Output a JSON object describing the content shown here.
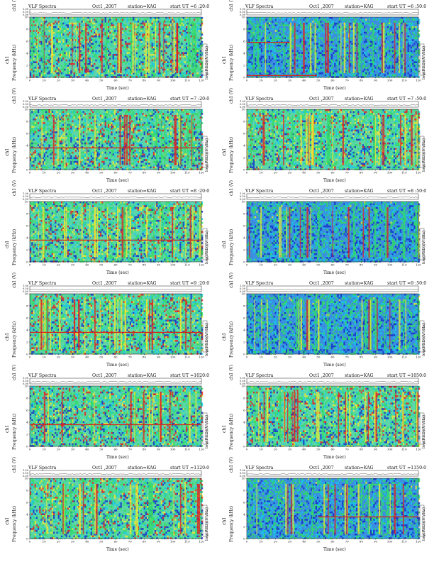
{
  "figure_title": "VLF Spectra",
  "chart_data": [
    {
      "type": "heatmap",
      "title": "VLF Spectra",
      "date": "Oct1 ,2007",
      "station": "station=KAG",
      "start": "start  UT =6 :20:0",
      "xlabel": "Time  (sec)",
      "ylabel_top": "ch1 (V)",
      "ylabel": "Frequency  (kHz)",
      "side_label": "ch1",
      "colorbar_label": "log(PSD)(V²/Hz)",
      "xlim": [
        0,
        120
      ],
      "ylim": [
        0,
        10
      ],
      "ch1_ticks": [
        "0.00",
        "0.50",
        "1.00"
      ],
      "x_ticks": [
        0,
        10,
        20,
        30,
        40,
        50,
        60,
        70,
        80,
        90,
        100,
        110,
        120
      ],
      "y_ticks": [
        0,
        2,
        4,
        6,
        8,
        10
      ],
      "hum_lines": []
    },
    {
      "type": "heatmap",
      "title": "VLF Spectra",
      "date": "Oct1 ,2007",
      "station": "station=KAG",
      "start": "start  UT =6 :50:0",
      "xlabel": "Time  (sec)",
      "ylabel_top": "ch1 (V)",
      "ylabel": "Frequency  (kHz)",
      "side_label": "ch1",
      "colorbar_label": "log(PSD)(V²/Hz)",
      "xlim": [
        0,
        120
      ],
      "ylim": [
        0,
        10
      ],
      "ch1_ticks": [
        "0.00",
        "0.50",
        "1.00"
      ],
      "x_ticks": [
        0,
        10,
        20,
        30,
        40,
        50,
        60,
        70,
        80,
        90,
        100,
        110,
        120
      ],
      "y_ticks": [
        0,
        2,
        4,
        6,
        8,
        10
      ],
      "hum_lines": [
        {
          "y": 5.8,
          "x0": 0,
          "x1": 30
        },
        {
          "y": 0.3,
          "x0": 0,
          "x1": 49
        }
      ]
    },
    {
      "type": "heatmap",
      "title": "VLF Spectra",
      "date": "Oct1 ,2007",
      "station": "station=KAG",
      "start": "start  UT =7 :20:0",
      "xlabel": "Time  (sec)",
      "ylabel_top": "ch1 (V)",
      "ylabel": "Frequency  (kHz)",
      "side_label": "ch1",
      "colorbar_label": "log(PSD)(V²/Hz)",
      "xlim": [
        0,
        120
      ],
      "ylim": [
        0,
        10
      ],
      "ch1_ticks": [
        "0.00",
        "0.50",
        "1.00"
      ],
      "x_ticks": [
        0,
        10,
        20,
        30,
        40,
        50,
        60,
        70,
        80,
        90,
        100,
        110,
        120
      ],
      "y_ticks": [
        0,
        2,
        4,
        6,
        8,
        10
      ],
      "hum_lines": [
        {
          "y": 3.6,
          "x0": 0,
          "x1": 120
        }
      ]
    },
    {
      "type": "heatmap",
      "title": "VLF Spectra",
      "date": "Oct1 ,2007",
      "station": "station=KAG",
      "start": "start  UT =7 :50:0",
      "xlabel": "Time  (sec)",
      "ylabel_top": "ch1 (V)",
      "ylabel": "Frequency  (kHz)",
      "side_label": "ch1",
      "colorbar_label": "log(PSD)(V²/Hz)",
      "xlim": [
        0,
        120
      ],
      "ylim": [
        0,
        10
      ],
      "ch1_ticks": [
        "0.00",
        "0.50",
        "1.00"
      ],
      "x_ticks": [
        0,
        10,
        20,
        30,
        40,
        50,
        60,
        70,
        80,
        90,
        100,
        110,
        120
      ],
      "y_ticks": [
        0,
        2,
        4,
        6,
        8,
        10
      ],
      "hum_lines": []
    },
    {
      "type": "heatmap",
      "title": "VLF Spectra",
      "date": "Oct1 ,2007",
      "station": "station=KAG",
      "start": "start  UT =8 :20:0",
      "xlabel": "Time  (sec)",
      "ylabel_top": "ch1 (V)",
      "ylabel": "Frequency  (kHz)",
      "side_label": "ch1",
      "colorbar_label": "log(PSD)(V²/Hz)",
      "xlim": [
        0,
        120
      ],
      "ylim": [
        0,
        10
      ],
      "ch1_ticks": [
        "0.00",
        "0.50",
        "1.00"
      ],
      "x_ticks": [
        0,
        10,
        20,
        30,
        40,
        50,
        60,
        70,
        80,
        90,
        100,
        110,
        120
      ],
      "y_ticks": [
        0,
        2,
        4,
        6,
        8,
        10
      ],
      "hum_lines": [
        {
          "y": 3.6,
          "x0": 0,
          "x1": 120
        }
      ]
    },
    {
      "type": "heatmap",
      "title": "VLF Spectra",
      "date": "Oct1 ,2007",
      "station": "station=KAG",
      "start": "start  UT =8 :50:0",
      "xlabel": "Time  (sec)",
      "ylabel_top": "ch1 (V)",
      "ylabel": "Frequency  (kHz)",
      "side_label": "ch1",
      "colorbar_label": "log(PSD)(V²/Hz)",
      "xlim": [
        0,
        120
      ],
      "ylim": [
        0,
        10
      ],
      "ch1_ticks": [
        "0.00",
        "0.50",
        "1.00"
      ],
      "x_ticks": [
        0,
        10,
        20,
        30,
        40,
        50,
        60,
        70,
        80,
        90,
        100,
        110,
        120
      ],
      "y_ticks": [
        0,
        2,
        4,
        6,
        8,
        10
      ],
      "hum_lines": []
    },
    {
      "type": "heatmap",
      "title": "VLF Spectra",
      "date": "Oct1 ,2007",
      "station": "station=KAG",
      "start": "start  UT =9 :20:0",
      "xlabel": "Time  (sec)",
      "ylabel_top": "ch1 (V)",
      "ylabel": "Frequency  (kHz)",
      "side_label": "ch1",
      "colorbar_label": "log(PSD)(V²/Hz)",
      "xlim": [
        0,
        120
      ],
      "ylim": [
        0,
        10
      ],
      "ch1_ticks": [
        "0.00",
        "0.50",
        "1.00"
      ],
      "x_ticks": [
        0,
        10,
        20,
        30,
        40,
        50,
        60,
        70,
        80,
        90,
        100,
        110,
        120
      ],
      "y_ticks": [
        0,
        2,
        4,
        6,
        8,
        10
      ],
      "hum_lines": [
        {
          "y": 3.6,
          "x0": 0,
          "x1": 120
        }
      ]
    },
    {
      "type": "heatmap",
      "title": "VLF Spectra",
      "date": "Oct1 ,2007",
      "station": "station=KAG",
      "start": "start  UT =9 :50:0",
      "xlabel": "Time  (sec)",
      "ylabel_top": "ch1 (V)",
      "ylabel": "Frequency  (kHz)",
      "side_label": "ch1",
      "colorbar_label": "log(PSD)(V²/Hz)",
      "xlim": [
        0,
        120
      ],
      "ylim": [
        0,
        10
      ],
      "ch1_ticks": [
        "0.00",
        "0.50",
        "1.00"
      ],
      "x_ticks": [
        0,
        10,
        20,
        30,
        40,
        50,
        60,
        70,
        80,
        90,
        100,
        110,
        120
      ],
      "y_ticks": [
        0,
        2,
        4,
        6,
        8,
        10
      ],
      "hum_lines": []
    },
    {
      "type": "heatmap",
      "title": "VLF Spectra",
      "date": "Oct1 ,2007",
      "station": "station=KAG",
      "start": "start  UT =1020:0",
      "xlabel": "Time  (sec)",
      "ylabel_top": "ch1 (V)",
      "ylabel": "Frequency  (kHz)",
      "side_label": "ch1",
      "colorbar_label": "log(PSD)(V²/Hz)",
      "xlim": [
        0,
        120
      ],
      "ylim": [
        0,
        10
      ],
      "ch1_ticks": [
        "0.00",
        "0.50",
        "1.00"
      ],
      "x_ticks": [
        0,
        10,
        20,
        30,
        40,
        50,
        60,
        70,
        80,
        90,
        100,
        110,
        120
      ],
      "y_ticks": [
        0,
        2,
        4,
        6,
        8,
        10
      ],
      "hum_lines": [
        {
          "y": 3.6,
          "x0": 0,
          "x1": 120
        }
      ]
    },
    {
      "type": "heatmap",
      "title": "VLF Spectra",
      "date": "Oct1 ,2007",
      "station": "station=KAG",
      "start": "start  UT =1050:0",
      "xlabel": "Time  (sec)",
      "ylabel_top": "ch1 (V)",
      "ylabel": "Frequency  (kHz)",
      "side_label": "ch1",
      "colorbar_label": "log(PSD)(V²/Hz)",
      "xlim": [
        0,
        120
      ],
      "ylim": [
        0,
        10
      ],
      "ch1_ticks": [
        "0.00",
        "0.50",
        "1.00"
      ],
      "x_ticks": [
        0,
        10,
        20,
        30,
        40,
        50,
        60,
        70,
        80,
        90,
        100,
        110,
        120
      ],
      "y_ticks": [
        0,
        2,
        4,
        6,
        8,
        10
      ],
      "hum_lines": []
    },
    {
      "type": "heatmap",
      "title": "VLF Spectra",
      "date": "Oct1 ,2007",
      "station": "station=KAG",
      "start": "start  UT =1120:0",
      "xlabel": "Time  (sec)",
      "ylabel_top": "ch1 (V)",
      "ylabel": "Frequency  (kHz)",
      "side_label": "ch1",
      "colorbar_label": "log(PSD)(V²/Hz)",
      "xlim": [
        0,
        120
      ],
      "ylim": [
        0,
        10
      ],
      "ch1_ticks": [
        "0.00",
        "0.50",
        "1.00"
      ],
      "x_ticks": [
        0,
        10,
        20,
        30,
        40,
        50,
        60,
        70,
        80,
        90,
        100,
        110,
        120
      ],
      "y_ticks": [
        0,
        2,
        4,
        6,
        8,
        10
      ],
      "hum_lines": []
    },
    {
      "type": "heatmap",
      "title": "VLF Spectra",
      "date": "Oct1 ,2007",
      "station": "station=KAG",
      "start": "start  UT =1150:0",
      "xlabel": "Time  (sec)",
      "ylabel_top": "ch1 (V)",
      "ylabel": "Frequency  (kHz)",
      "side_label": "ch1",
      "colorbar_label": "log(PSD)(V²/Hz)",
      "xlim": [
        0,
        120
      ],
      "ylim": [
        0,
        10
      ],
      "ch1_ticks": [
        "0.00",
        "0.50",
        "1.00"
      ],
      "x_ticks": [
        0,
        10,
        20,
        30,
        40,
        50,
        60,
        70,
        80,
        90,
        100,
        110,
        120
      ],
      "y_ticks": [
        0,
        2,
        4,
        6,
        8,
        10
      ],
      "hum_lines": [
        {
          "y": 3.6,
          "x0": 50,
          "x1": 120
        }
      ]
    }
  ],
  "colors": {
    "low": "#1430c8",
    "mid_low": "#19c8e6",
    "mid": "#32dc64",
    "mid_high": "#f0e632",
    "high": "#e61e1e",
    "frame": "#222222",
    "hum": "#d2281e"
  }
}
